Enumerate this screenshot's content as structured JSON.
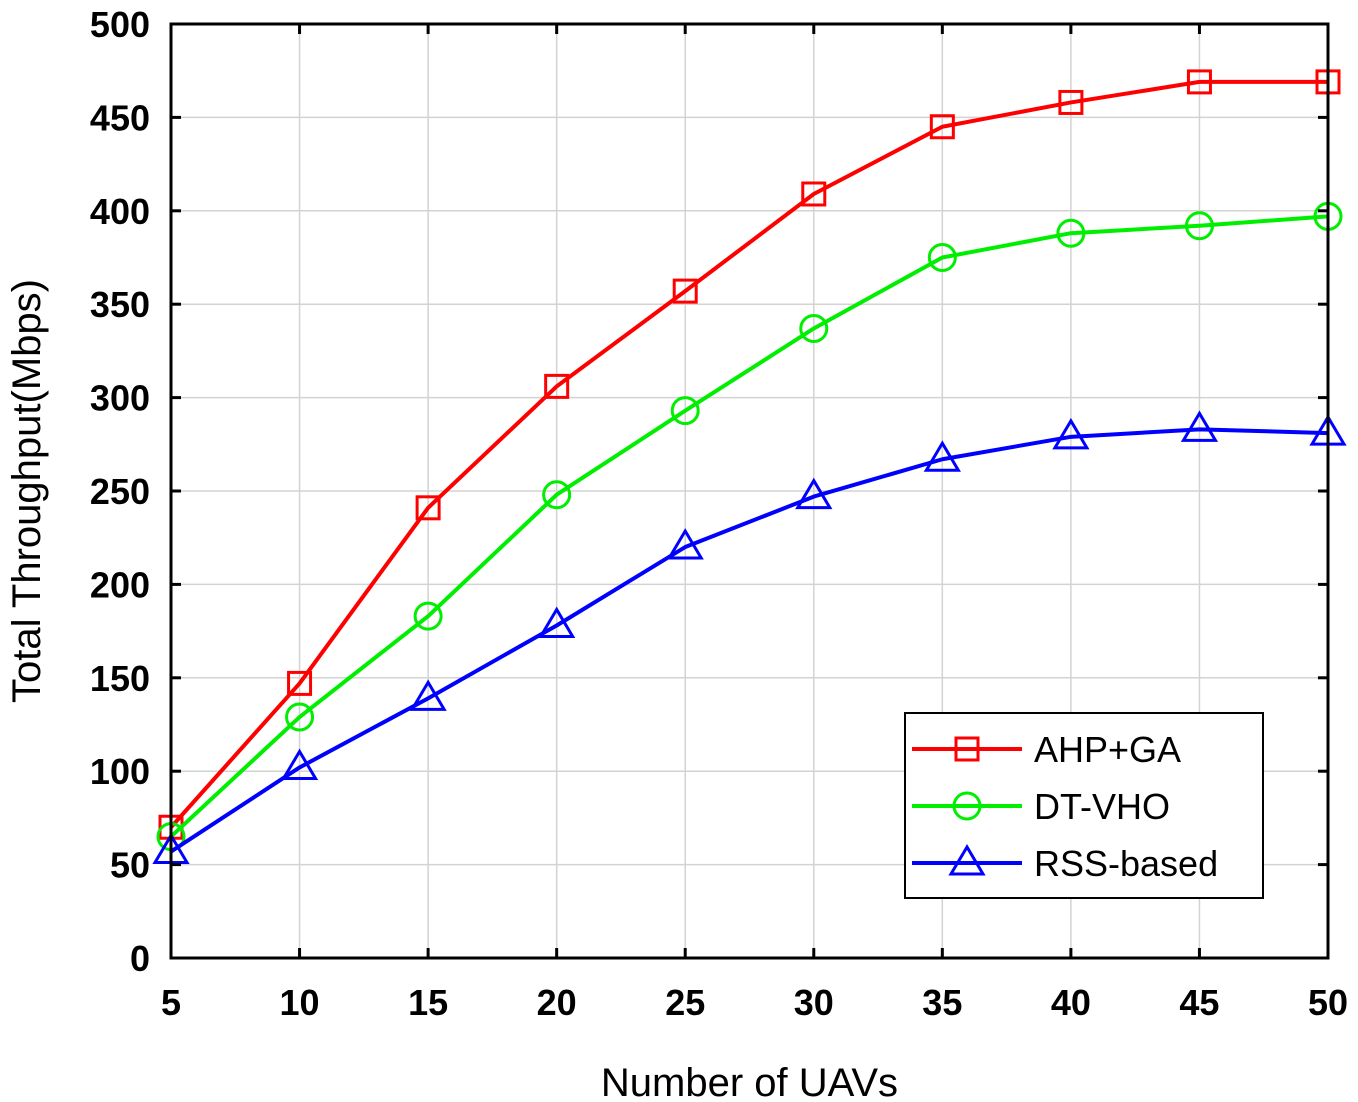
{
  "chart_data": {
    "type": "line",
    "title": "",
    "xlabel": "Number of UAVs",
    "ylabel": "Total Throughput(Mbps)",
    "x": [
      5,
      10,
      15,
      20,
      25,
      30,
      35,
      40,
      45,
      50
    ],
    "xlim": [
      5,
      50
    ],
    "ylim": [
      0,
      500
    ],
    "xticks": [
      5,
      10,
      15,
      20,
      25,
      30,
      35,
      40,
      45,
      50
    ],
    "yticks": [
      0,
      50,
      100,
      150,
      200,
      250,
      300,
      350,
      400,
      450,
      500
    ],
    "grid": true,
    "legend_position": "bottom-right",
    "series": [
      {
        "name": "AHP+GA",
        "color": "#ff0000",
        "marker": "square",
        "values": [
          70,
          147,
          241,
          306,
          357,
          409,
          445,
          458,
          469,
          469
        ]
      },
      {
        "name": "DT-VHO",
        "color": "#00ee00",
        "marker": "circle",
        "values": [
          65,
          129,
          183,
          248,
          293,
          337,
          375,
          388,
          392,
          397
        ]
      },
      {
        "name": "RSS-based",
        "color": "#0000ff",
        "marker": "triangle",
        "values": [
          57,
          102,
          139,
          178,
          220,
          247,
          267,
          279,
          283,
          281
        ]
      }
    ]
  }
}
